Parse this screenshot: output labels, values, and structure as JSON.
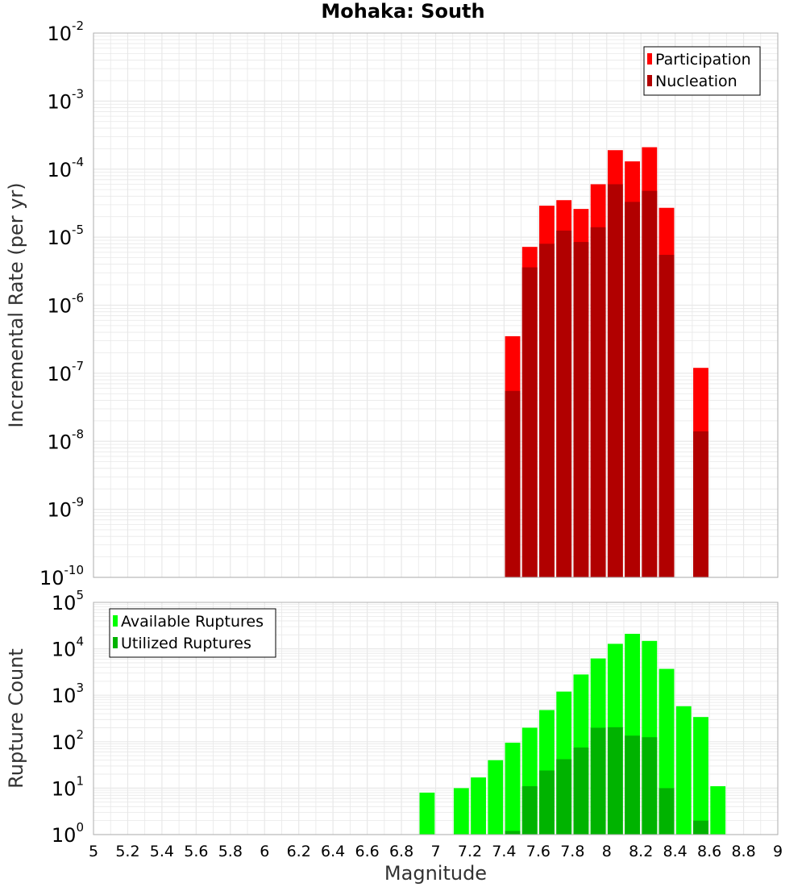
{
  "title": "Mohaka: South",
  "xlabel": "Magnitude",
  "colors": {
    "participation": "#ff0000",
    "nucleation": "#b10000",
    "available": "#00ff00",
    "utilized": "#00b300",
    "grid": "#e8e8e8",
    "frame": "#b0b0b0"
  },
  "chart_data": [
    {
      "type": "bar",
      "panel": "rates",
      "ylabel": "Incremental Rate (per yr)",
      "yscale": "log",
      "ylim_exponents": [
        -10,
        -2
      ],
      "xlim": [
        5,
        9
      ],
      "bin_width": 0.1,
      "grid": true,
      "legend_position": "top-right",
      "series": [
        {
          "name": "Participation",
          "color_key": "participation",
          "points": [
            [
              7.45,
              3.5e-07
            ],
            [
              7.55,
              7.2e-06
            ],
            [
              7.65,
              2.9e-05
            ],
            [
              7.75,
              3.5e-05
            ],
            [
              7.85,
              2.6e-05
            ],
            [
              7.95,
              6e-05
            ],
            [
              8.05,
              0.00019
            ],
            [
              8.15,
              0.00013
            ],
            [
              8.25,
              0.00021
            ],
            [
              8.35,
              2.7e-05
            ],
            [
              8.55,
              1.2e-07
            ]
          ]
        },
        {
          "name": "Nucleation",
          "color_key": "nucleation",
          "points": [
            [
              7.45,
              5.5e-08
            ],
            [
              7.55,
              3.6e-06
            ],
            [
              7.65,
              8e-06
            ],
            [
              7.75,
              1.25e-05
            ],
            [
              7.85,
              8.5e-06
            ],
            [
              7.95,
              1.4e-05
            ],
            [
              8.05,
              6e-05
            ],
            [
              8.15,
              3.3e-05
            ],
            [
              8.25,
              4.8e-05
            ],
            [
              8.35,
              5.5e-06
            ],
            [
              8.55,
              1.4e-08
            ]
          ]
        }
      ]
    },
    {
      "type": "bar",
      "panel": "counts",
      "ylabel": "Rupture Count",
      "yscale": "log",
      "ylim_exponents": [
        0,
        5
      ],
      "xlim": [
        5,
        9
      ],
      "bin_width": 0.1,
      "grid": true,
      "legend_position": "top-left",
      "series": [
        {
          "name": "Available Ruptures",
          "color_key": "available",
          "points": [
            [
              6.95,
              8
            ],
            [
              7.15,
              10
            ],
            [
              7.25,
              17
            ],
            [
              7.35,
              40
            ],
            [
              7.45,
              95
            ],
            [
              7.55,
              200
            ],
            [
              7.65,
              480
            ],
            [
              7.75,
              1200
            ],
            [
              7.85,
              2800
            ],
            [
              7.95,
              6200
            ],
            [
              8.05,
              12800
            ],
            [
              8.15,
              21000
            ],
            [
              8.25,
              14800
            ],
            [
              8.35,
              3700
            ],
            [
              8.45,
              580
            ],
            [
              8.55,
              340
            ],
            [
              8.65,
              11
            ]
          ]
        },
        {
          "name": "Utilized Ruptures",
          "color_key": "utilized",
          "points": [
            [
              7.45,
              1.2
            ],
            [
              7.55,
              11
            ],
            [
              7.65,
              24
            ],
            [
              7.75,
              42
            ],
            [
              7.85,
              75
            ],
            [
              7.95,
              200
            ],
            [
              8.05,
              205
            ],
            [
              8.15,
              135
            ],
            [
              8.25,
              125
            ],
            [
              8.35,
              10
            ],
            [
              8.55,
              2
            ]
          ]
        }
      ]
    }
  ],
  "x_ticks": [
    "5",
    "5.2",
    "5.4",
    "5.6",
    "5.8",
    "6",
    "6.2",
    "6.4",
    "6.6",
    "6.8",
    "7",
    "7.2",
    "7.4",
    "7.6",
    "7.8",
    "8",
    "8.2",
    "8.4",
    "8.6",
    "8.8",
    "9"
  ]
}
